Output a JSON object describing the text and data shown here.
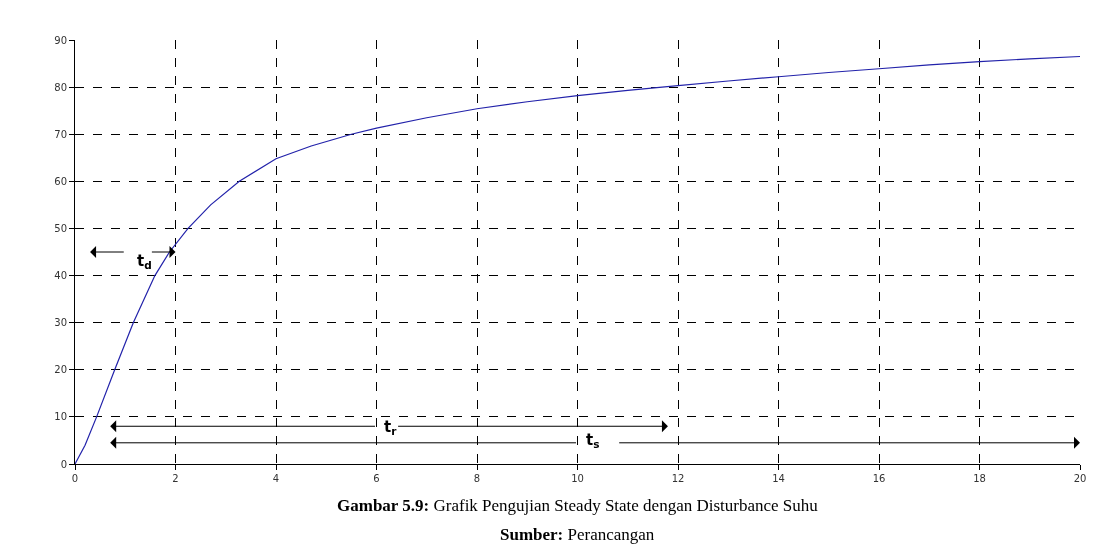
{
  "chart_data": {
    "type": "line",
    "x": [
      0,
      0.2,
      0.43,
      0.79,
      1.16,
      1.59,
      1.88,
      2.25,
      2.7,
      3.27,
      4,
      4.7,
      5.5,
      6,
      7,
      8,
      9,
      10,
      11,
      12,
      13,
      14,
      15,
      16,
      17,
      18,
      19,
      20
    ],
    "series": [
      {
        "color": "#2222aa",
        "values": [
          0,
          4,
          10,
          20,
          30,
          40,
          45,
          50,
          55,
          60,
          64.8,
          67.5,
          70,
          71.3,
          73.5,
          75.4,
          76.9,
          78.2,
          79.3,
          80.3,
          81.3,
          82.2,
          83.1,
          83.9,
          84.7,
          85.4,
          86,
          86.5
        ]
      }
    ],
    "xlim": [
      0,
      20
    ],
    "xticks": [
      0,
      2,
      4,
      6,
      8,
      10,
      12,
      14,
      16,
      18,
      20
    ],
    "ylim": [
      0,
      90
    ],
    "yticks": [
      0,
      10,
      20,
      30,
      40,
      50,
      60,
      70,
      80,
      90
    ],
    "grid": true,
    "line_style": "solid",
    "marker": "none",
    "annotations": [
      "t$_{d}$",
      "t$_{r}$",
      "t$_{s}$",
      "**Gambar 5.9:** Grafik Pengujian Steady State dengan Disturbance Suhu",
      "**Sumber:** Perancangan"
    ]
  }
}
